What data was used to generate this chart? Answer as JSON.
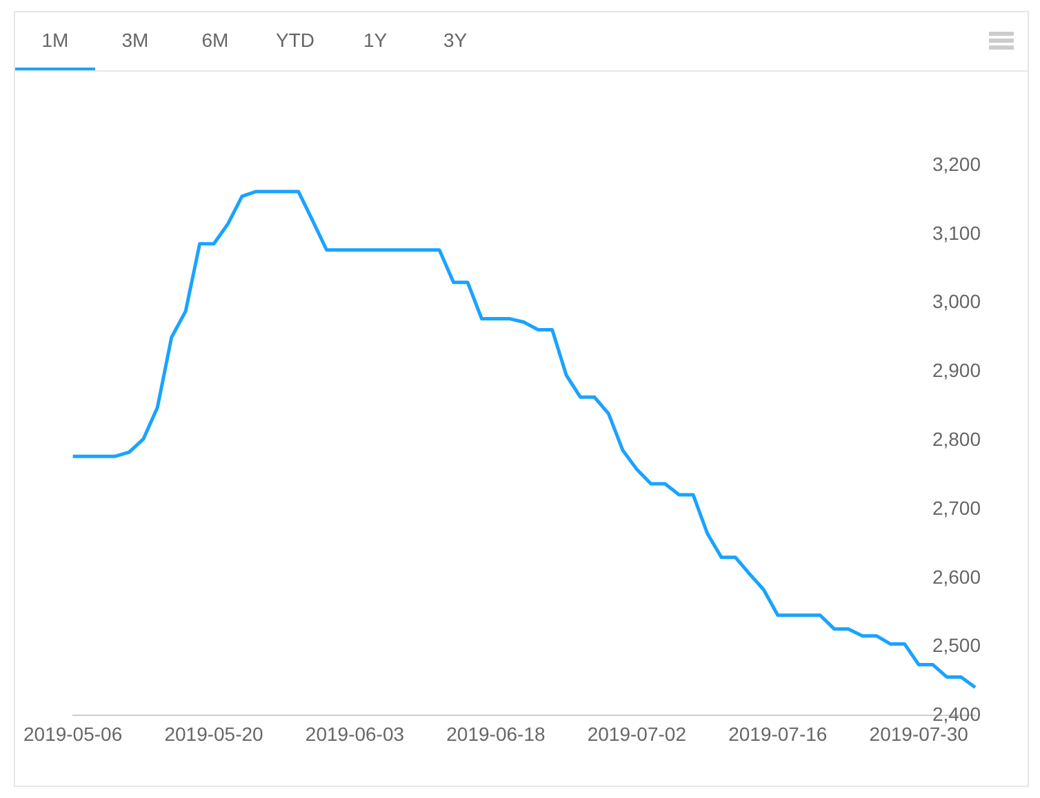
{
  "chart_data": {
    "type": "line",
    "categories": [
      "2019-05-06",
      null,
      null,
      null,
      null,
      null,
      null,
      null,
      null,
      null,
      "2019-05-20",
      null,
      null,
      null,
      null,
      null,
      null,
      null,
      null,
      null,
      "2019-06-03",
      null,
      null,
      null,
      null,
      null,
      null,
      null,
      null,
      null,
      "2019-06-18",
      null,
      null,
      null,
      null,
      null,
      null,
      null,
      null,
      null,
      "2019-07-02",
      null,
      null,
      null,
      null,
      null,
      null,
      null,
      null,
      null,
      "2019-07-16",
      null,
      null,
      null,
      null,
      null,
      null,
      null,
      null,
      null,
      "2019-07-30",
      null,
      null,
      null,
      null
    ],
    "series": [
      {
        "color": "#1aa3ff",
        "values": [
          2777,
          2777,
          2777,
          2777,
          2783,
          2802,
          2848,
          2950,
          2988,
          3086,
          3086,
          3115,
          3155,
          3162,
          3162,
          3162,
          3162,
          3120,
          3077,
          3077,
          3077,
          3077,
          3077,
          3077,
          3077,
          3077,
          3077,
          3030,
          3030,
          2977,
          2977,
          2977,
          2972,
          2961,
          2961,
          2895,
          2863,
          2863,
          2839,
          2786,
          2758,
          2737,
          2737,
          2721,
          2721,
          2665,
          2630,
          2630,
          2606,
          2583,
          2546,
          2546,
          2546,
          2546,
          2526,
          2526,
          2516,
          2516,
          2504,
          2504,
          2474,
          2474,
          2456,
          2456,
          2441
        ]
      }
    ],
    "ylim": [
      2400,
      3200
    ],
    "yticks": [
      {
        "value": 2400,
        "label": "2,400"
      },
      {
        "value": 2500,
        "label": "2,500"
      },
      {
        "value": 2600,
        "label": "2,600"
      },
      {
        "value": 2700,
        "label": "2,700"
      },
      {
        "value": 2800,
        "label": "2,800"
      },
      {
        "value": 2900,
        "label": "2,900"
      },
      {
        "value": 3000,
        "label": "3,000"
      },
      {
        "value": 3100,
        "label": "3,100"
      },
      {
        "value": 3200,
        "label": "3,200"
      }
    ],
    "annotations": [
      "1M",
      "3M",
      "6M",
      "YTD",
      "1Y",
      "3Y"
    ],
    "grid": false,
    "legend": false,
    "marker": "none",
    "line_style": "solid"
  }
}
